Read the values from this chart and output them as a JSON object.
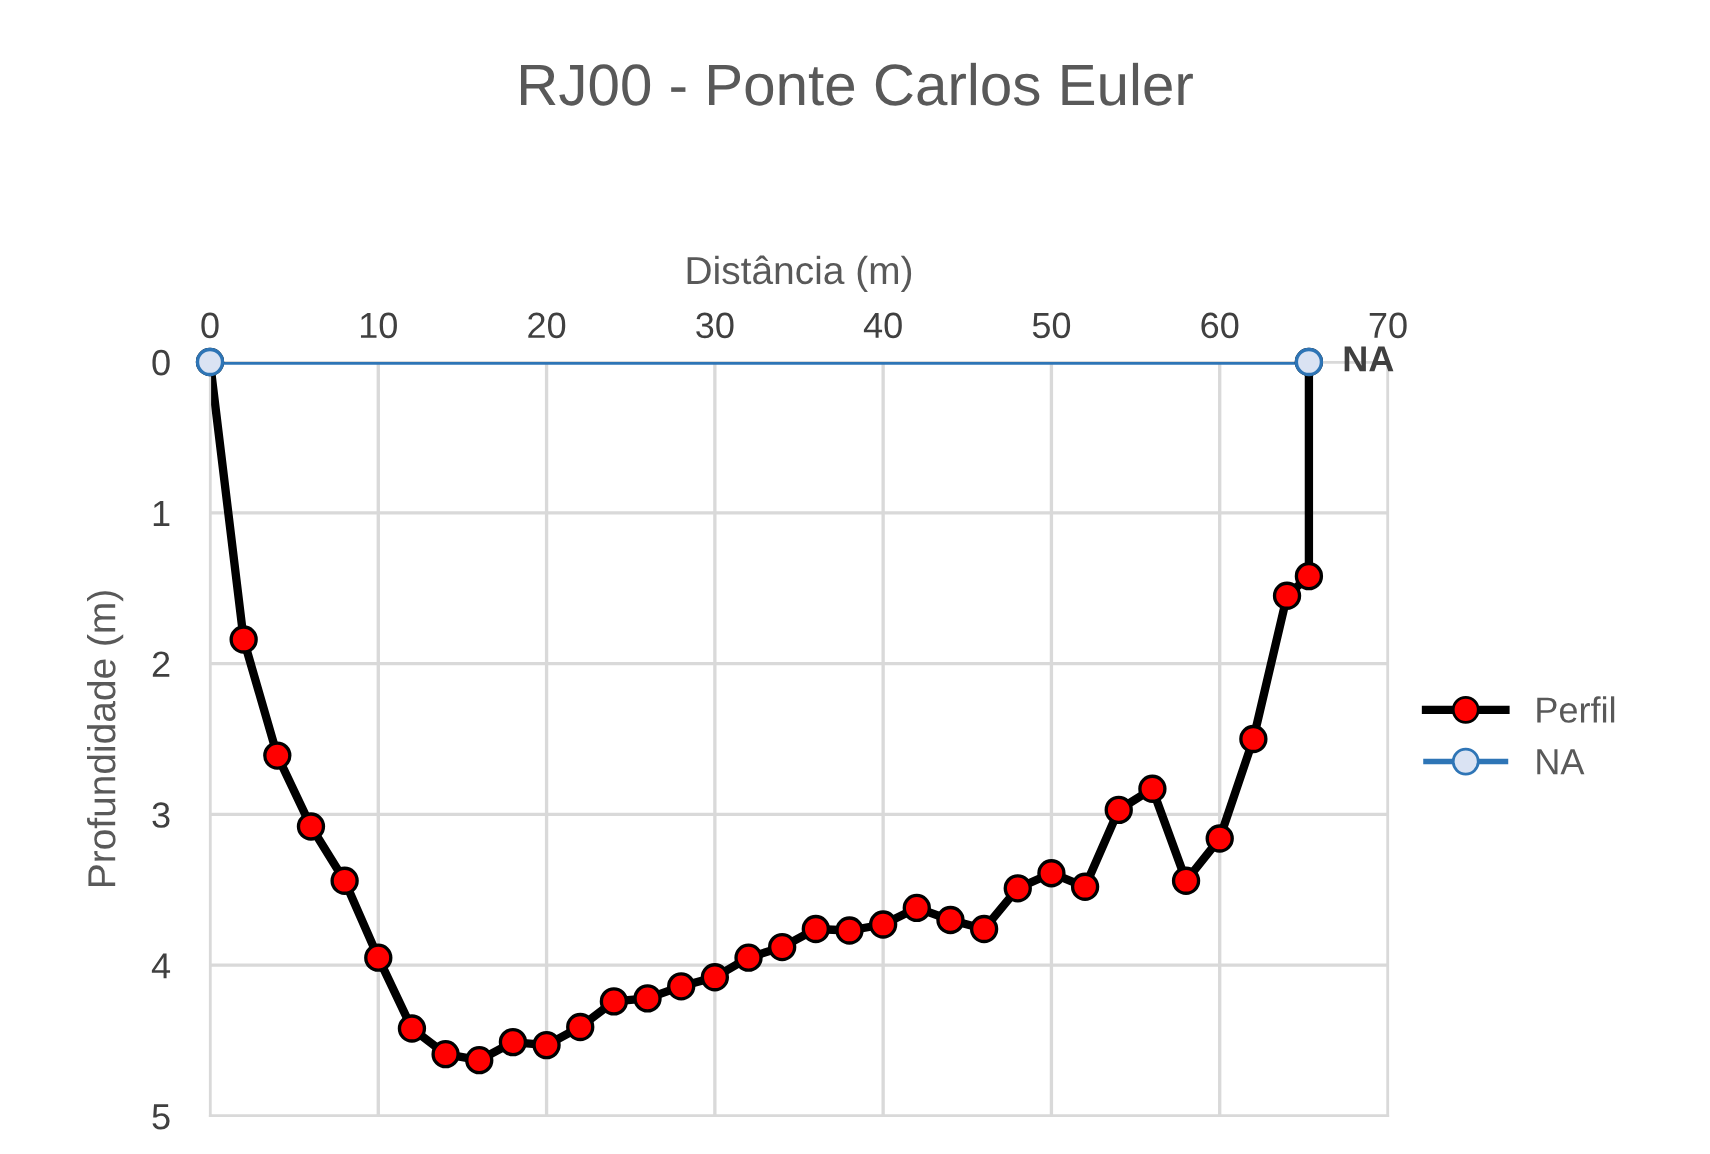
{
  "chart_data": {
    "type": "line",
    "title": "RJ00 - Ponte Carlos Euler",
    "xlabel": "Distância (m)",
    "ylabel": "Profundidade (m)",
    "xlim": [
      0,
      70
    ],
    "xticks": [
      0,
      10,
      20,
      30,
      40,
      50,
      60,
      70
    ],
    "ylim": [
      5,
      0
    ],
    "yticks": [
      0,
      1,
      2,
      3,
      4,
      5
    ],
    "grid": true,
    "legend": "right",
    "marker": "circle",
    "line_style": "solid",
    "annotations": [
      {
        "text": "NA",
        "x": 65.3,
        "y": 0
      }
    ],
    "series": [
      {
        "name": "Perfil",
        "color": "#000000",
        "x": [
          0,
          2,
          4,
          6,
          8,
          10,
          12,
          14,
          16,
          18,
          20,
          22,
          24,
          26,
          28,
          30,
          32,
          34,
          36,
          38,
          40,
          42,
          44,
          46,
          48,
          50,
          52,
          54,
          56,
          58,
          60,
          62,
          64,
          65.3,
          65.3
        ],
        "values": [
          0,
          1.84,
          2.61,
          3.08,
          3.44,
          3.95,
          4.42,
          4.59,
          4.63,
          4.51,
          4.53,
          4.41,
          4.24,
          4.22,
          4.14,
          4.08,
          3.95,
          3.88,
          3.76,
          3.77,
          3.73,
          3.62,
          3.7,
          3.76,
          3.49,
          3.39,
          3.48,
          2.97,
          2.83,
          3.44,
          3.16,
          2.5,
          1.55,
          1.42,
          0
        ]
      },
      {
        "name": "NA",
        "color": "#2e75b6",
        "x": [
          0,
          65.3
        ],
        "values": [
          0,
          0
        ]
      }
    ]
  }
}
